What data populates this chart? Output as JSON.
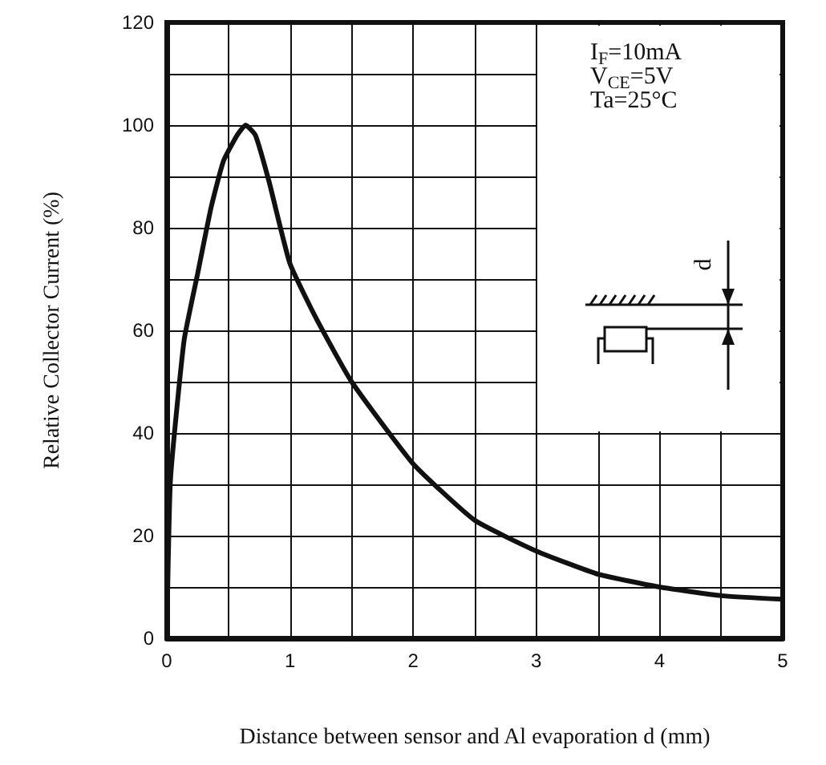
{
  "chart_data": {
    "type": "line",
    "xlabel": "Distance between sensor and Al evaporation d (mm)",
    "ylabel": "Relative Collector Current (%)",
    "annotations": [
      "I$_{F}$=10mA",
      "V$_{CE}$=5V",
      "Ta=25°C",
      "d"
    ],
    "series": [
      {
        "color": "#111111",
        "x": [
          0,
          0.03,
          0.14,
          0.25,
          0.36,
          0.46,
          0.57,
          0.64,
          0.72,
          0.83,
          1.0,
          1.22,
          1.5,
          2.0,
          2.5,
          3.0,
          3.5,
          4.0,
          4.5,
          5.0
        ],
        "values": [
          0,
          31,
          58,
          71,
          84,
          93,
          98,
          100,
          98,
          89,
          73,
          62,
          50,
          34,
          23,
          17,
          12.5,
          10,
          8.3,
          7.6
        ]
      }
    ],
    "xlim": [
      0,
      5
    ],
    "xticks": [
      0,
      {
        "value": 0.5,
        "label": null
      },
      1,
      {
        "value": 1.5,
        "label": null
      },
      2,
      {
        "value": 2.5,
        "label": null
      },
      3,
      {
        "value": 3.5,
        "label": null
      },
      4,
      {
        "value": 4.5,
        "label": null
      },
      5
    ],
    "ylim": [
      0,
      120
    ],
    "yticks": [
      0,
      {
        "value": 10,
        "label": null
      },
      20,
      {
        "value": 30,
        "label": null
      },
      40,
      {
        "value": 50,
        "label": null
      },
      60,
      {
        "value": 70,
        "label": null
      },
      80,
      {
        "value": 90,
        "label": null
      },
      100,
      {
        "value": 110,
        "label": null
      },
      120
    ],
    "grid": true,
    "marker": "none",
    "line_style": "solid"
  }
}
